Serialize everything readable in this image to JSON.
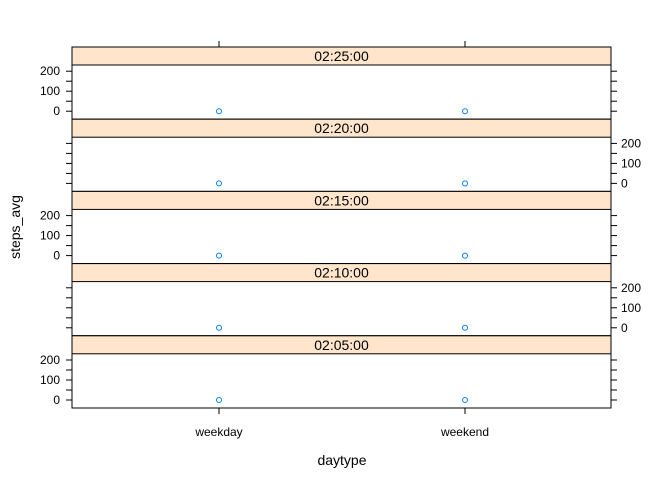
{
  "chart_data": {
    "type": "scatter",
    "layout": "trellis",
    "xlabel": "daytype",
    "ylabel": "steps_avg",
    "categories": [
      "weekday",
      "weekend"
    ],
    "y_ticks": [
      0,
      100,
      200
    ],
    "ylim": [
      0,
      250
    ],
    "colors": {
      "strip": "#ffe5cc",
      "point": "#0080ff",
      "frame": "#000000"
    },
    "panels": [
      {
        "label": "02:25:00",
        "values": [
          0,
          0
        ]
      },
      {
        "label": "02:20:00",
        "values": [
          0,
          0
        ]
      },
      {
        "label": "02:15:00",
        "values": [
          0,
          0
        ]
      },
      {
        "label": "02:10:00",
        "values": [
          0,
          0
        ]
      },
      {
        "label": "02:05:00",
        "values": [
          0,
          0
        ]
      }
    ]
  }
}
